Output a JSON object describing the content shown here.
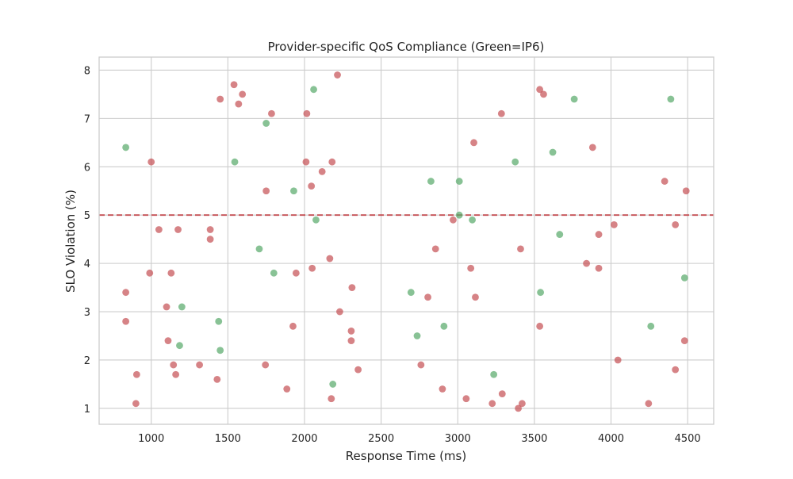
{
  "chart_data": {
    "type": "scatter",
    "title": "Provider-specific QoS Compliance (Green=IP6)",
    "xlabel": "Response Time (ms)",
    "ylabel": "SLO Violation (%)",
    "xlim": [
      660,
      4670
    ],
    "ylim": [
      0.67,
      8.27
    ],
    "xticks": [
      1000,
      1500,
      2000,
      2500,
      3000,
      3500,
      4000,
      4500
    ],
    "yticks": [
      1,
      2,
      3,
      4,
      5,
      6,
      7,
      8
    ],
    "grid": true,
    "threshold": {
      "y": 5.0,
      "style": "dashed",
      "color": "#c44e52"
    },
    "colors": {
      "ip6": "#55a868",
      "other": "#c44e52"
    },
    "series": [
      {
        "key": "ip6",
        "points": [
          [
            834,
            6.4
          ],
          [
            1200,
            3.1
          ],
          [
            1185,
            2.3
          ],
          [
            1440,
            2.8
          ],
          [
            1450,
            2.2
          ],
          [
            1545,
            6.1
          ],
          [
            1705,
            4.3
          ],
          [
            1750,
            6.9
          ],
          [
            1800,
            3.8
          ],
          [
            1930,
            5.5
          ],
          [
            2060,
            7.6
          ],
          [
            2075,
            4.9
          ],
          [
            2185,
            1.5
          ],
          [
            2695,
            3.4
          ],
          [
            2735,
            2.5
          ],
          [
            2825,
            5.7
          ],
          [
            2910,
            2.7
          ],
          [
            3010,
            5.7
          ],
          [
            3010,
            5.0
          ],
          [
            3095,
            4.9
          ],
          [
            3235,
            1.7
          ],
          [
            3375,
            6.1
          ],
          [
            3540,
            3.4
          ],
          [
            3620,
            6.3
          ],
          [
            3665,
            4.6
          ],
          [
            3760,
            7.4
          ],
          [
            4260,
            2.7
          ],
          [
            4390,
            7.4
          ],
          [
            4480,
            3.7
          ]
        ]
      },
      {
        "key": "other",
        "points": [
          [
            834,
            3.4
          ],
          [
            834,
            2.8
          ],
          [
            905,
            1.7
          ],
          [
            900,
            1.1
          ],
          [
            990,
            3.8
          ],
          [
            1000,
            6.1
          ],
          [
            1050,
            4.7
          ],
          [
            1100,
            3.1
          ],
          [
            1110,
            2.4
          ],
          [
            1130,
            3.8
          ],
          [
            1145,
            1.9
          ],
          [
            1160,
            1.7
          ],
          [
            1175,
            4.7
          ],
          [
            1315,
            1.9
          ],
          [
            1385,
            4.7
          ],
          [
            1385,
            4.5
          ],
          [
            1430,
            1.6
          ],
          [
            1450,
            7.4
          ],
          [
            1540,
            7.7
          ],
          [
            1570,
            7.3
          ],
          [
            1595,
            7.5
          ],
          [
            1745,
            1.9
          ],
          [
            1750,
            5.5
          ],
          [
            1785,
            7.1
          ],
          [
            1885,
            1.4
          ],
          [
            1925,
            2.7
          ],
          [
            1945,
            3.8
          ],
          [
            2010,
            6.1
          ],
          [
            2015,
            7.1
          ],
          [
            2045,
            5.6
          ],
          [
            2050,
            3.9
          ],
          [
            2115,
            5.9
          ],
          [
            2165,
            4.1
          ],
          [
            2175,
            1.2
          ],
          [
            2180,
            6.1
          ],
          [
            2215,
            7.9
          ],
          [
            2230,
            3.0
          ],
          [
            2305,
            2.6
          ],
          [
            2305,
            2.4
          ],
          [
            2310,
            3.5
          ],
          [
            2350,
            1.8
          ],
          [
            2760,
            1.9
          ],
          [
            2805,
            3.3
          ],
          [
            2855,
            4.3
          ],
          [
            2900,
            1.4
          ],
          [
            2970,
            4.9
          ],
          [
            3055,
            1.2
          ],
          [
            3085,
            3.9
          ],
          [
            3105,
            6.5
          ],
          [
            3115,
            3.3
          ],
          [
            3225,
            1.1
          ],
          [
            3285,
            7.1
          ],
          [
            3290,
            1.3
          ],
          [
            3395,
            1.0
          ],
          [
            3410,
            4.3
          ],
          [
            3420,
            1.1
          ],
          [
            3535,
            7.6
          ],
          [
            3535,
            2.7
          ],
          [
            3560,
            7.5
          ],
          [
            3840,
            4.0
          ],
          [
            3880,
            6.4
          ],
          [
            3920,
            4.6
          ],
          [
            3920,
            3.9
          ],
          [
            4020,
            4.8
          ],
          [
            4045,
            2.0
          ],
          [
            4245,
            1.1
          ],
          [
            4350,
            5.7
          ],
          [
            4420,
            4.8
          ],
          [
            4420,
            1.8
          ],
          [
            4480,
            2.4
          ],
          [
            4490,
            5.5
          ]
        ]
      }
    ]
  }
}
